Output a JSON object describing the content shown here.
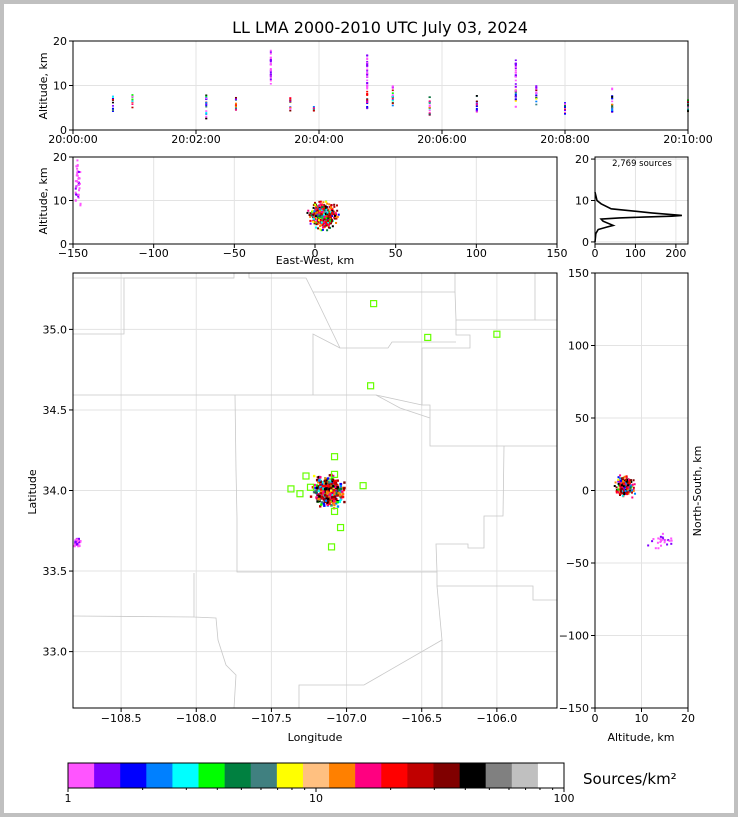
{
  "title": "LL LMA 2000-2010 UTC July 03, 2024",
  "time_panel": {
    "ylabel": "Altitude, km",
    "yticks": [
      "0",
      "10",
      "20"
    ],
    "xticks": [
      "20:00:00",
      "20:02:00",
      "20:04:00",
      "20:06:00",
      "20:08:00",
      "20:10:00"
    ]
  },
  "ew_panel": {
    "xlabel": "East-West, km",
    "ylabel": "Altitude, km",
    "xticks": [
      "−150",
      "−100",
      "−50",
      "0",
      "50",
      "100",
      "150"
    ],
    "yticks": [
      "0",
      "10",
      "20"
    ]
  },
  "hist_panel": {
    "annotation": "2,769 sources",
    "xticks": [
      "0",
      "100",
      "200"
    ],
    "yticks": [
      "0",
      "10",
      "20"
    ]
  },
  "map_panel": {
    "xlabel": "Longitude",
    "ylabel": "Latitude",
    "xticks": [
      "−108.5",
      "−108.0",
      "−107.5",
      "−107.0",
      "−106.5",
      "−106.0"
    ],
    "yticks": [
      "33.0",
      "33.5",
      "34.0",
      "34.5",
      "35.0"
    ],
    "station_color": "#66ff00"
  },
  "ns_panel": {
    "xlabel": "Altitude, km",
    "ylabel": "North-South, km",
    "xticks": [
      "0",
      "10",
      "20"
    ],
    "yticks": [
      "−150",
      "−100",
      "−50",
      "0",
      "50",
      "100",
      "150"
    ]
  },
  "colorbar": {
    "label": "Sources/km²",
    "ticks": [
      "1",
      "10",
      "100"
    ],
    "colors": [
      "#ff55ff",
      "#8000ff",
      "#0000ff",
      "#0080ff",
      "#00ffff",
      "#00ff00",
      "#008040",
      "#408080",
      "#ffff00",
      "#ffc080",
      "#ff8000",
      "#ff0080",
      "#ff0000",
      "#c00000",
      "#800000",
      "#000000",
      "#808080",
      "#c0c0c0",
      "#ffffff"
    ]
  },
  "chart_data": [
    {
      "type": "scatter",
      "name_ref": "time_vs_altitude",
      "xlim": [
        "20:00:00",
        "20:10:00"
      ],
      "ylim": [
        0,
        20
      ],
      "xlabel": "",
      "ylabel": "Altitude, km",
      "flash_columns": [
        {
          "t": "20:00:39",
          "alt_min": 3.5,
          "alt_max": 7.5
        },
        {
          "t": "20:00:58",
          "alt_min": 5,
          "alt_max": 8
        },
        {
          "t": "20:02:10",
          "alt_min": 2.5,
          "alt_max": 8
        },
        {
          "t": "20:02:39",
          "alt_min": 4,
          "alt_max": 8
        },
        {
          "t": "20:03:13",
          "alt_min": 10,
          "alt_max": 18
        },
        {
          "t": "20:03:32",
          "alt_min": 4,
          "alt_max": 7.5
        },
        {
          "t": "20:03:55",
          "alt_min": 4,
          "alt_max": 5.5
        },
        {
          "t": "20:04:47",
          "alt_min": 4.5,
          "alt_max": 17
        },
        {
          "t": "20:05:12",
          "alt_min": 5,
          "alt_max": 10
        },
        {
          "t": "20:05:48",
          "alt_min": 3,
          "alt_max": 7.5
        },
        {
          "t": "20:06:34",
          "alt_min": 4,
          "alt_max": 8
        },
        {
          "t": "20:07:12",
          "alt_min": 5,
          "alt_max": 16
        },
        {
          "t": "20:07:32",
          "alt_min": 5,
          "alt_max": 10
        },
        {
          "t": "20:08:00",
          "alt_min": 3.5,
          "alt_max": 6.5
        },
        {
          "t": "20:08:46",
          "alt_min": 4,
          "alt_max": 10
        },
        {
          "t": "20:10:00",
          "alt_min": 4,
          "alt_max": 7
        }
      ]
    },
    {
      "type": "scatter",
      "name_ref": "east_west_vs_altitude",
      "xlim": [
        -150,
        150
      ],
      "ylim": [
        0,
        20
      ],
      "xlabel": "East-West, km",
      "ylabel": "Altitude, km",
      "clusters": [
        {
          "x_center": 5,
          "x_spread": 12,
          "alt_min": 3,
          "alt_max": 10
        },
        {
          "x_center": -147,
          "x_spread": 3,
          "alt_min": 8,
          "alt_max": 20
        }
      ]
    },
    {
      "type": "line",
      "name_ref": "source_altitude_histogram",
      "xlim": [
        0,
        230
      ],
      "ylim": [
        0,
        20
      ],
      "total_sources": 2769,
      "x": [
        0,
        2,
        8,
        30,
        45,
        20,
        15,
        60,
        120,
        190,
        215,
        140,
        40,
        15,
        5,
        0
      ],
      "y": [
        0,
        2,
        3,
        3.6,
        4,
        5,
        5.5,
        5.8,
        6,
        6.2,
        6.4,
        7,
        8,
        9.2,
        10,
        12
      ]
    },
    {
      "type": "scatter",
      "name_ref": "plan_view_map",
      "xlim": [
        -108.82,
        -105.6
      ],
      "ylim": [
        32.65,
        35.35
      ],
      "xlabel": "Longitude",
      "ylabel": "Latitude",
      "stations": [
        [
          -106.82,
          35.16
        ],
        [
          -106.46,
          34.95
        ],
        [
          -106.0,
          34.97
        ],
        [
          -106.84,
          34.65
        ],
        [
          -107.08,
          34.21
        ],
        [
          -107.27,
          34.09
        ],
        [
          -107.08,
          34.1
        ],
        [
          -107.37,
          34.01
        ],
        [
          -107.24,
          34.02
        ],
        [
          -107.31,
          33.98
        ],
        [
          -106.89,
          34.03
        ],
        [
          -107.08,
          33.87
        ],
        [
          -107.04,
          33.77
        ],
        [
          -107.1,
          33.65
        ]
      ],
      "source_clusters": [
        {
          "lon": -107.12,
          "lat": 34.0,
          "lon_spread": 0.13,
          "lat_spread": 0.12
        },
        {
          "lon": -108.79,
          "lat": 33.68,
          "lon_spread": 0.03,
          "lat_spread": 0.04
        }
      ]
    },
    {
      "type": "scatter",
      "name_ref": "altitude_vs_north_south",
      "xlim": [
        0,
        20
      ],
      "ylim": [
        -150,
        150
      ],
      "xlabel": "Altitude, km",
      "ylabel": "North-South, km",
      "clusters": [
        {
          "alt_center": 6.5,
          "alt_spread": 3,
          "ns_min": -6,
          "ns_max": 12
        },
        {
          "alt_center": 14,
          "alt_spread": 5,
          "ns_min": -42,
          "ns_max": -28
        }
      ]
    }
  ]
}
